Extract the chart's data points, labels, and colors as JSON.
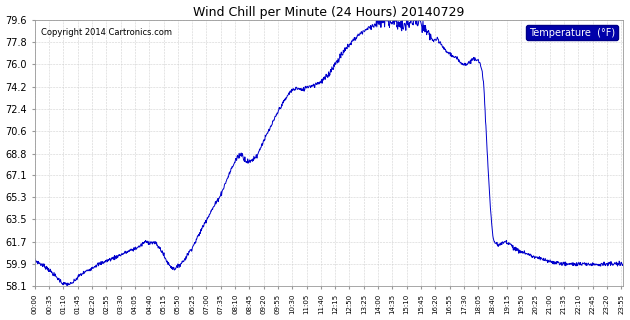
{
  "title": "Wind Chill per Minute (24 Hours) 20140729",
  "copyright": "Copyright 2014 Cartronics.com",
  "legend_label": "Temperature  (°F)",
  "line_color": "#0000CC",
  "background_color": "#ffffff",
  "grid_color": "#cccccc",
  "ylim": [
    58.1,
    79.6
  ],
  "yticks": [
    58.1,
    59.9,
    61.7,
    63.5,
    65.3,
    67.1,
    68.8,
    70.6,
    72.4,
    74.2,
    76.0,
    77.8,
    79.6
  ],
  "legend_bg": "#0000AA",
  "legend_text_color": "#ffffff",
  "xtick_labels": [
    "00:00",
    "00:35",
    "01:10",
    "01:45",
    "02:20",
    "02:55",
    "03:30",
    "04:05",
    "04:40",
    "05:15",
    "05:50",
    "06:25",
    "07:00",
    "07:35",
    "08:10",
    "08:45",
    "09:20",
    "09:55",
    "10:30",
    "11:05",
    "11:40",
    "12:15",
    "12:50",
    "13:25",
    "14:00",
    "14:35",
    "15:10",
    "15:45",
    "16:20",
    "16:55",
    "17:30",
    "18:05",
    "18:40",
    "19:15",
    "19:50",
    "20:25",
    "21:00",
    "21:35",
    "22:10",
    "22:45",
    "23:20",
    "23:55"
  ],
  "control_points": [
    [
      0,
      60.2
    ],
    [
      30,
      59.6
    ],
    [
      70,
      58.3
    ],
    [
      90,
      58.3
    ],
    [
      110,
      59.0
    ],
    [
      150,
      59.8
    ],
    [
      200,
      60.5
    ],
    [
      255,
      61.3
    ],
    [
      270,
      61.7
    ],
    [
      295,
      61.6
    ],
    [
      310,
      61.0
    ],
    [
      320,
      60.3
    ],
    [
      330,
      59.8
    ],
    [
      340,
      59.5
    ],
    [
      350,
      59.7
    ],
    [
      365,
      60.2
    ],
    [
      390,
      61.5
    ],
    [
      420,
      63.5
    ],
    [
      455,
      65.5
    ],
    [
      480,
      67.5
    ],
    [
      495,
      68.5
    ],
    [
      505,
      68.8
    ],
    [
      515,
      68.3
    ],
    [
      525,
      68.1
    ],
    [
      535,
      68.4
    ],
    [
      545,
      68.7
    ],
    [
      555,
      69.5
    ],
    [
      575,
      70.8
    ],
    [
      600,
      72.5
    ],
    [
      625,
      73.8
    ],
    [
      640,
      74.1
    ],
    [
      655,
      73.9
    ],
    [
      665,
      74.2
    ],
    [
      680,
      74.3
    ],
    [
      700,
      74.6
    ],
    [
      715,
      75.0
    ],
    [
      730,
      75.8
    ],
    [
      745,
      76.5
    ],
    [
      760,
      77.2
    ],
    [
      775,
      77.8
    ],
    [
      790,
      78.3
    ],
    [
      805,
      78.7
    ],
    [
      820,
      79.0
    ],
    [
      835,
      79.3
    ],
    [
      850,
      79.5
    ],
    [
      860,
      79.6
    ],
    [
      875,
      79.5
    ],
    [
      890,
      79.3
    ],
    [
      900,
      79.0
    ],
    [
      910,
      79.2
    ],
    [
      920,
      79.4
    ],
    [
      930,
      79.5
    ],
    [
      940,
      79.3
    ],
    [
      950,
      79.0
    ],
    [
      960,
      78.5
    ],
    [
      970,
      78.2
    ],
    [
      975,
      77.9
    ],
    [
      985,
      78.0
    ],
    [
      995,
      77.6
    ],
    [
      1005,
      77.1
    ],
    [
      1015,
      76.9
    ],
    [
      1025,
      76.6
    ],
    [
      1035,
      76.4
    ],
    [
      1045,
      76.1
    ],
    [
      1055,
      76.0
    ],
    [
      1065,
      76.2
    ],
    [
      1075,
      76.5
    ],
    [
      1085,
      76.4
    ],
    [
      1090,
      76.0
    ],
    [
      1095,
      75.3
    ],
    [
      1098,
      74.5
    ],
    [
      1101,
      73.0
    ],
    [
      1104,
      71.0
    ],
    [
      1107,
      69.0
    ],
    [
      1110,
      67.2
    ],
    [
      1113,
      65.5
    ],
    [
      1116,
      64.0
    ],
    [
      1119,
      62.8
    ],
    [
      1122,
      62.0
    ],
    [
      1125,
      61.7
    ],
    [
      1130,
      61.5
    ],
    [
      1135,
      61.4
    ],
    [
      1140,
      61.5
    ],
    [
      1145,
      61.6
    ],
    [
      1150,
      61.7
    ],
    [
      1155,
      61.7
    ],
    [
      1160,
      61.6
    ],
    [
      1165,
      61.5
    ],
    [
      1170,
      61.3
    ],
    [
      1180,
      61.0
    ],
    [
      1200,
      60.8
    ],
    [
      1220,
      60.5
    ],
    [
      1240,
      60.3
    ],
    [
      1260,
      60.1
    ],
    [
      1280,
      60.0
    ],
    [
      1300,
      59.9
    ],
    [
      1320,
      59.9
    ],
    [
      1360,
      59.9
    ],
    [
      1400,
      59.9
    ],
    [
      1420,
      59.9
    ],
    [
      1439,
      59.9
    ]
  ]
}
